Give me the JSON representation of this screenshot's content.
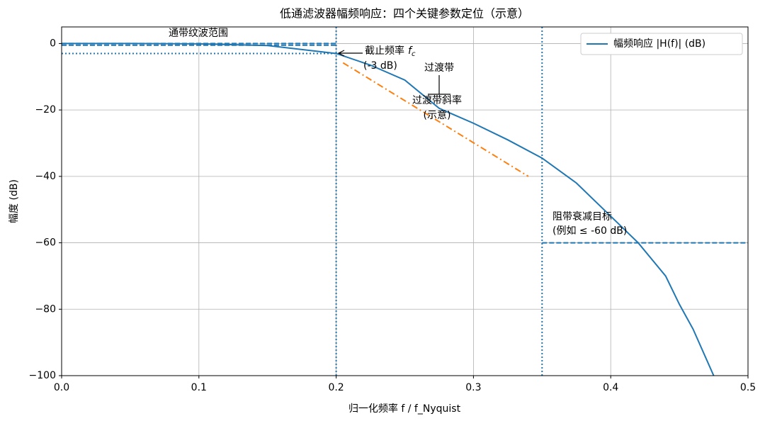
{
  "chart_data": {
    "type": "line",
    "title": "低通滤波器幅频响应：四个关键参数定位（示意）",
    "x_label": "归一化频率  f / f_Nyquist",
    "y_label": "幅度 (dB)",
    "x": [
      0,
      0.05,
      0.1,
      0.15,
      0.2,
      0.225,
      0.25,
      0.275,
      0.3,
      0.325,
      0.35,
      0.375,
      0.4,
      0.42,
      0.44,
      0.45,
      0.46,
      0.475
    ],
    "series": [
      {
        "name": "幅频响应 |H(f)| (dB)",
        "color": "#1f77b4",
        "values": [
          0,
          0,
          -0.1,
          -0.6,
          -3,
          -6.5,
          -11,
          -19.5,
          -24,
          -29,
          -34.5,
          -42,
          -52,
          -60,
          -70,
          -78.5,
          -86,
          -100
        ]
      }
    ],
    "slope_line": {
      "x": [
        0.205,
        0.34
      ],
      "values": [
        -5.8,
        -40
      ],
      "color": "#ff7f0e"
    },
    "vlines": [
      0.2,
      0.35
    ],
    "passband_lines": {
      "values": [
        0,
        -0.5
      ],
      "xspan": [
        0,
        0.2
      ]
    },
    "cutoff_line": {
      "value": -3,
      "xspan": [
        0,
        0.2
      ]
    },
    "stopband_line": {
      "value": -60,
      "xspan": [
        0.35,
        0.5
      ]
    },
    "xlim": [
      0,
      0.5
    ],
    "ylim": [
      -100,
      5
    ],
    "xticks": [
      {
        "value": 0,
        "label": "0.0"
      },
      0.1,
      0.2,
      0.3,
      0.4,
      0.5
    ],
    "yticks": [
      {
        "value": -100,
        "label": "−100"
      },
      {
        "value": -80,
        "label": "−80"
      },
      {
        "value": -60,
        "label": "−60"
      },
      {
        "value": -40,
        "label": "−40"
      },
      {
        "value": -20,
        "label": "−20"
      },
      0
    ],
    "grid": true,
    "legend": "upper right",
    "annotations": {
      "passband": "通带纹波范围",
      "cutoff": {
        "text": "截止频率",
        "symbol": "f",
        "subscript": "c",
        "line2": "(-3 dB)"
      },
      "transition": "过渡带",
      "slope": [
        "过渡带斜率",
        "(示意)"
      ],
      "stopband": [
        "阻带衰减目标",
        "(例如 ≤ -60 dB)"
      ]
    }
  }
}
